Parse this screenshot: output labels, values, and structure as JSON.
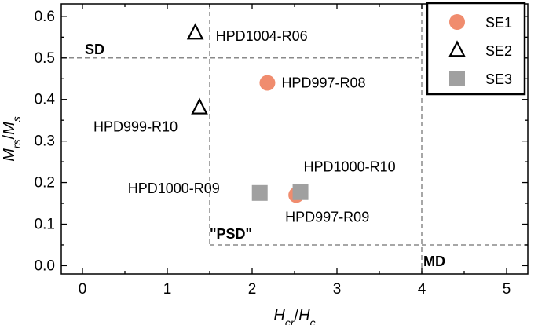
{
  "chart_data": {
    "type": "scatter",
    "xlabel_main": "H",
    "xlabel_sub": "cr",
    "xlabel_sep": "/",
    "xlabel_main2": "H",
    "xlabel_sub2": "c",
    "ylabel_main": "M",
    "ylabel_sub": "rs",
    "ylabel_sep": "/",
    "ylabel_main2": "M",
    "ylabel_sub2": "s",
    "xlim": [
      -0.25,
      5.25
    ],
    "ylim": [
      -0.02,
      0.63
    ],
    "xticks": [
      0,
      1,
      2,
      3,
      4,
      5
    ],
    "yticks": [
      0.0,
      0.1,
      0.2,
      0.3,
      0.4,
      0.5,
      0.6
    ],
    "ytick_labels": [
      "0.0",
      "0.1",
      "0.2",
      "0.3",
      "0.4",
      "0.5",
      "0.6"
    ],
    "legend_position": "top-right",
    "series": [
      {
        "name": "SE1",
        "marker": "circle",
        "color": "#F08C6E",
        "points": [
          {
            "x": 2.18,
            "y": 0.44,
            "label": "HPD997-R08"
          },
          {
            "x": 2.52,
            "y": 0.17,
            "label": "HPD997-R09"
          }
        ]
      },
      {
        "name": "SE2",
        "marker": "triangle-open",
        "color": "#000000",
        "points": [
          {
            "x": 1.33,
            "y": 0.56,
            "label": "HPD1004-R06"
          },
          {
            "x": 1.38,
            "y": 0.38,
            "label": "HPD999-R10"
          }
        ]
      },
      {
        "name": "SE3",
        "marker": "square",
        "color": "#A0A0A0",
        "points": [
          {
            "x": 2.09,
            "y": 0.175,
            "label": "HPD1000-R09"
          },
          {
            "x": 2.57,
            "y": 0.177,
            "label": "HPD1000-R10"
          }
        ]
      }
    ],
    "regions": [
      {
        "label": "SD"
      },
      {
        "label": "\"PSD\""
      },
      {
        "label": "MD"
      }
    ],
    "boundaries": {
      "sd_mrs": 0.5,
      "sd_hcr": 1.5,
      "md_hcr": 4.0,
      "md_mrs": 0.05
    }
  }
}
